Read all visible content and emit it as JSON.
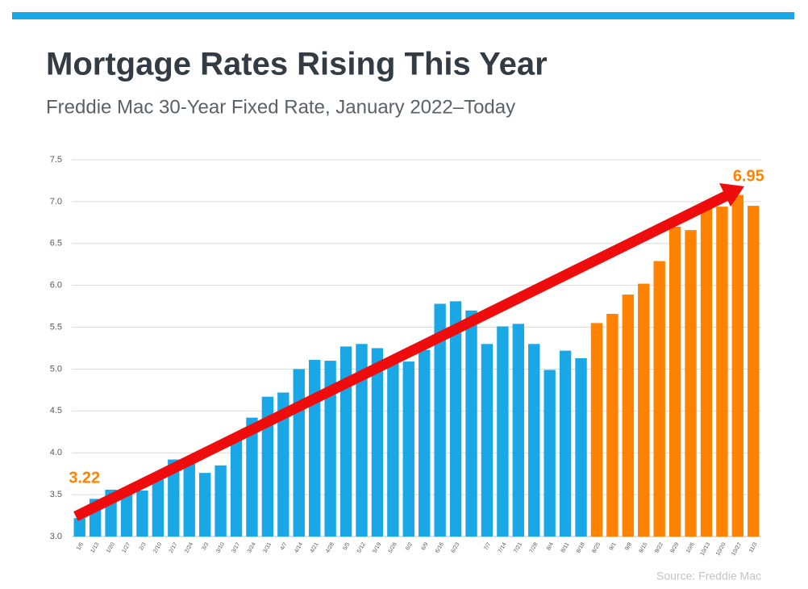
{
  "chart_data": {
    "type": "bar",
    "title": "Mortgage Rates Rising This Year",
    "subtitle": "Freddie Mac 30-Year Fixed Rate, January 2022–Today",
    "source": "Source: Freddie Mac",
    "categories": [
      "1/6",
      "1/13",
      "1/20",
      "1/27",
      "2/3",
      "2/10",
      "2/17",
      "2/24",
      "3/3",
      "3/10",
      "3/17",
      "3/24",
      "3/31",
      "4/7",
      "4/14",
      "4/21",
      "4/28",
      "5/5",
      "5/12",
      "5/19",
      "5/26",
      "6/2",
      "6/9",
      "6/16",
      "6/23",
      null,
      "7/7",
      "7/14",
      "7/21",
      "7/28",
      "8/4",
      "8/11",
      "8/18",
      "8/25",
      "9/1",
      "9/8",
      "9/15",
      "9/22",
      "9/29",
      "10/6",
      "10/13",
      "10/20",
      "10/27",
      "11/3"
    ],
    "values": [
      3.22,
      3.45,
      3.56,
      3.55,
      3.55,
      3.69,
      3.92,
      3.89,
      3.76,
      3.85,
      4.16,
      4.42,
      4.67,
      4.72,
      5.0,
      5.11,
      5.1,
      5.27,
      5.3,
      5.25,
      5.1,
      5.09,
      5.23,
      5.78,
      5.81,
      5.7,
      5.3,
      5.51,
      5.54,
      5.3,
      4.99,
      5.22,
      5.13,
      5.55,
      5.66,
      5.89,
      6.02,
      6.29,
      6.7,
      6.66,
      6.92,
      6.94,
      7.08,
      6.95
    ],
    "value_labels": [
      "3.22",
      null,
      null,
      null,
      null,
      null,
      null,
      null,
      null,
      null,
      null,
      null,
      null,
      null,
      null,
      null,
      null,
      null,
      null,
      null,
      null,
      null,
      null,
      null,
      null,
      null,
      null,
      null,
      null,
      null,
      null,
      null,
      null,
      null,
      null,
      null,
      null,
      null,
      null,
      null,
      null,
      null,
      null,
      "6.95"
    ],
    "colors": [
      "#1aa7e6",
      "#1aa7e6",
      "#1aa7e6",
      "#1aa7e6",
      "#1aa7e6",
      "#1aa7e6",
      "#1aa7e6",
      "#1aa7e6",
      "#1aa7e6",
      "#1aa7e6",
      "#1aa7e6",
      "#1aa7e6",
      "#1aa7e6",
      "#1aa7e6",
      "#1aa7e6",
      "#1aa7e6",
      "#1aa7e6",
      "#1aa7e6",
      "#1aa7e6",
      "#1aa7e6",
      "#1aa7e6",
      "#1aa7e6",
      "#1aa7e6",
      "#1aa7e6",
      "#1aa7e6",
      "#1aa7e6",
      "#1aa7e6",
      "#1aa7e6",
      "#1aa7e6",
      "#1aa7e6",
      "#1aa7e6",
      "#1aa7e6",
      "#1aa7e6",
      "#ff8200",
      "#ff8200",
      "#ff8200",
      "#ff8200",
      "#ff8200",
      "#ff8200",
      "#ff8200",
      "#ff8200",
      "#ff8200",
      "#ff8200",
      "#ff8200",
      "#ff8200"
    ],
    "label_color": "#ff8200",
    "ylim": [
      3,
      7.5
    ],
    "yticks": [
      {
        "value": 3,
        "label": "3.0"
      },
      3.5,
      {
        "value": 4,
        "label": "4.0"
      },
      4.5,
      {
        "value": 5,
        "label": "5.0"
      },
      5.5,
      {
        "value": 6,
        "label": "6.0"
      },
      6.5,
      {
        "value": 7,
        "label": "7.0"
      },
      7.5
    ],
    "grid": true
  }
}
